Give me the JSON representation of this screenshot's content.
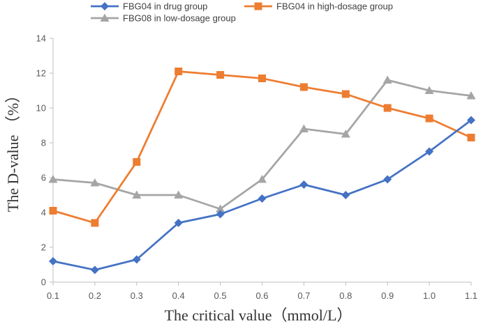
{
  "chart_data": {
    "type": "line",
    "title": "",
    "xlabel": "The critical value（mmol/L）",
    "ylabel": "The D-value （%）",
    "categories": [
      "0.1",
      "0.2",
      "0.3",
      "0.4",
      "0.5",
      "0.6",
      "0.7",
      "0.8",
      "0.9",
      "1.0",
      "1.1"
    ],
    "ylim": [
      0,
      14
    ],
    "yticks": [
      "0",
      "2",
      "4",
      "6",
      "8",
      "10",
      "12",
      "14"
    ],
    "grid": false,
    "legend_position": "top",
    "series": [
      {
        "name": "FBG04 in drug group",
        "color": "#4472C4",
        "marker": "diamond",
        "values": [
          1.2,
          0.7,
          1.3,
          3.4,
          3.9,
          4.8,
          5.6,
          5.0,
          5.9,
          7.5,
          9.3
        ]
      },
      {
        "name": "FBG04 in high-dosage group",
        "color": "#ED7D31",
        "marker": "square",
        "values": [
          4.1,
          3.4,
          6.9,
          12.1,
          11.9,
          11.7,
          11.2,
          10.8,
          10.0,
          9.4,
          8.3
        ]
      },
      {
        "name": "FBG08 in low-dosage group",
        "color": "#A5A5A5",
        "marker": "triangle",
        "values": [
          5.9,
          5.7,
          5.0,
          5.0,
          4.2,
          5.9,
          8.8,
          8.5,
          11.6,
          11.0,
          10.7
        ]
      }
    ]
  }
}
